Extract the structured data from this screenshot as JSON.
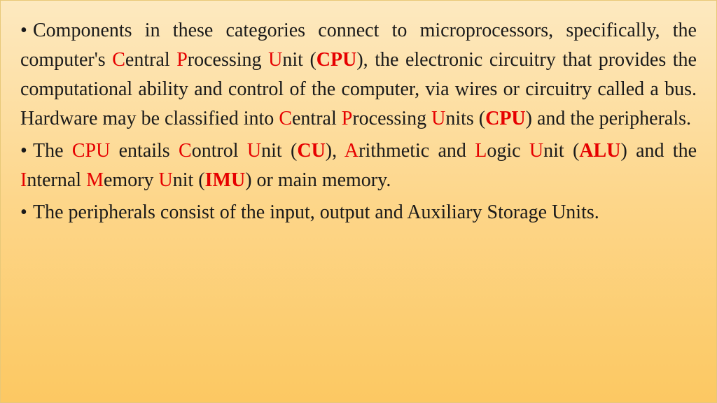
{
  "colors": {
    "background_top": "#fde9c0",
    "background_bottom": "#fcc862",
    "border": "#e8c878",
    "text": "#1a1a1a",
    "highlight": "#e60000"
  },
  "typography": {
    "font_family": "Times New Roman",
    "font_size_pt": 28,
    "line_height": 1.5,
    "align": "justify"
  },
  "bullet_char": "•",
  "paragraphs": [
    {
      "runs": [
        {
          "t": "Components in these categories connect to microprocessors, specifically, the computer's "
        },
        {
          "t": "C",
          "red": true
        },
        {
          "t": "entral "
        },
        {
          "t": "P",
          "red": true
        },
        {
          "t": "rocessing "
        },
        {
          "t": "U",
          "red": true
        },
        {
          "t": "nit ("
        },
        {
          "t": "CPU",
          "red": true,
          "bold": true
        },
        {
          "t": "), the electronic circuitry that provides the computational ability and control of the computer, via wires or circuitry called a bus. Hardware may be classified into "
        },
        {
          "t": "C",
          "red": true
        },
        {
          "t": "entral "
        },
        {
          "t": "P",
          "red": true
        },
        {
          "t": "rocessing "
        },
        {
          "t": "U",
          "red": true
        },
        {
          "t": "nits ("
        },
        {
          "t": "CPU",
          "red": true,
          "bold": true
        },
        {
          "t": ") and the peripherals."
        }
      ]
    },
    {
      "runs": [
        {
          "t": "The "
        },
        {
          "t": "CPU",
          "red": true
        },
        {
          "t": " entails "
        },
        {
          "t": "C",
          "red": true
        },
        {
          "t": "ontrol "
        },
        {
          "t": "U",
          "red": true
        },
        {
          "t": "nit ("
        },
        {
          "t": "CU",
          "red": true,
          "bold": true
        },
        {
          "t": "), "
        },
        {
          "t": "A",
          "red": true
        },
        {
          "t": "rithmetic and "
        },
        {
          "t": "L",
          "red": true
        },
        {
          "t": "ogic "
        },
        {
          "t": "U",
          "red": true
        },
        {
          "t": "nit ("
        },
        {
          "t": "ALU",
          "red": true,
          "bold": true
        },
        {
          "t": ") and the "
        },
        {
          "t": "I",
          "red": true
        },
        {
          "t": "nternal "
        },
        {
          "t": "M",
          "red": true
        },
        {
          "t": "emory "
        },
        {
          "t": "U",
          "red": true
        },
        {
          "t": "nit ("
        },
        {
          "t": "IMU",
          "red": true,
          "bold": true
        },
        {
          "t": ") or main memory."
        }
      ]
    },
    {
      "runs": [
        {
          "t": "The peripherals consist of the input, output and Auxiliary Storage Units."
        }
      ]
    }
  ]
}
